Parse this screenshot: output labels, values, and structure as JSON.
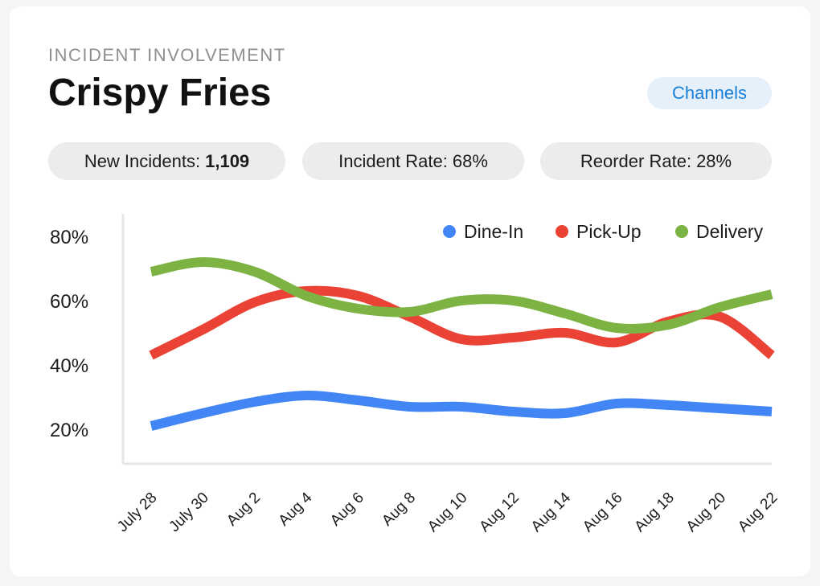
{
  "header": {
    "eyebrow": "INCIDENT INVOLVEMENT",
    "title": "Crispy Fries",
    "channels_label": "Channels"
  },
  "stats": [
    {
      "label": "New Incidents:",
      "value": "1,109",
      "bold": true
    },
    {
      "label": "Incident Rate:",
      "value": "68%",
      "bold": false
    },
    {
      "label": "Reorder Rate:",
      "value": "28%",
      "bold": false
    }
  ],
  "colors": {
    "dine_in": "#4285f4",
    "pick_up": "#ea4335",
    "delivery": "#7cb342",
    "axis": "#e6e6e8"
  },
  "chart_data": {
    "type": "line",
    "title": "",
    "xlabel": "",
    "ylabel": "",
    "x": [
      "July 28",
      "July 30",
      "Aug 2",
      "Aug 4",
      "Aug 6",
      "Aug 8",
      "Aug 10",
      "Aug 12",
      "Aug 14",
      "Aug 16",
      "Aug 18",
      "Aug 20",
      "Aug 22"
    ],
    "yticks": [
      "20%",
      "40%",
      "60%",
      "80%"
    ],
    "ylim": [
      15,
      87
    ],
    "legend_position": "top-right",
    "grid": false,
    "series": [
      {
        "name": "Dine-In",
        "color": "#4285f4",
        "values": [
          21,
          25,
          28.5,
          30.5,
          29,
          27,
          27,
          25.5,
          25,
          28,
          27.5,
          26.5,
          25.5
        ]
      },
      {
        "name": "Pick-Up",
        "color": "#ea4335",
        "values": [
          43,
          51,
          59.5,
          63,
          61.5,
          55,
          48,
          48.5,
          50,
          47,
          53.5,
          55,
          43
        ]
      },
      {
        "name": "Delivery",
        "color": "#7cb342",
        "values": [
          69,
          72,
          69,
          61.5,
          57.5,
          56.5,
          60,
          60,
          56,
          51.5,
          52.5,
          58,
          62
        ]
      }
    ]
  }
}
